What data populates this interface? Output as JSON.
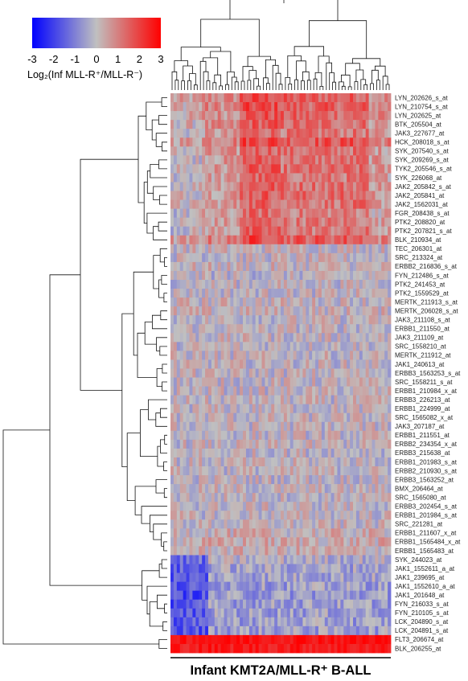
{
  "chart_data": {
    "type": "heatmap",
    "title": "Infant KMT2A/MLL-R⁺ B-ALL",
    "colorbar": {
      "label": "Log₂(Inf MLL-R⁺/MLL-R⁻)",
      "ticks": [
        "-3",
        "-2",
        "-1",
        "0",
        "1",
        "2",
        "3"
      ],
      "range": [
        -3,
        3
      ],
      "colors": {
        "low": "#0000ff",
        "mid": "#c0c0c0",
        "high": "#ff0000"
      }
    },
    "n_samples": 70,
    "rows": [
      {
        "label": "LYN_202626_s_at",
        "mean": 0.9
      },
      {
        "label": "LYN_210754_s_at",
        "mean": 0.9
      },
      {
        "label": "LYN_202625_at",
        "mean": 0.8
      },
      {
        "label": "BTK_205504_at",
        "mean": 0.7
      },
      {
        "label": "JAK3_227677_at",
        "mean": 0.5
      },
      {
        "label": "HCK_208018_s_at",
        "mean": 1.1
      },
      {
        "label": "SYK_207540_s_at",
        "mean": 0.6
      },
      {
        "label": "SYK_209269_s_at",
        "mean": 0.6
      },
      {
        "label": "TYK2_205546_s_at",
        "mean": 0.6
      },
      {
        "label": "SYK_226068_at",
        "mean": 0.5
      },
      {
        "label": "JAK2_205842_s_at",
        "mean": 0.7
      },
      {
        "label": "JAK2_205841_at",
        "mean": 0.7
      },
      {
        "label": "JAK2_1562031_at",
        "mean": 0.6
      },
      {
        "label": "FGR_208438_s_at",
        "mean": 0.4
      },
      {
        "label": "PTK2_208820_at",
        "mean": 0.5
      },
      {
        "label": "PTK2_207821_s_at",
        "mean": 0.5
      },
      {
        "label": "BLK_210934_at",
        "mean": 1.0
      },
      {
        "label": "TEC_206301_at",
        "mean": 0.1
      },
      {
        "label": "SRC_213324_at",
        "mean": 0.0
      },
      {
        "label": "ERBB2_216836_s_at",
        "mean": 0.1
      },
      {
        "label": "FYN_212486_s_at",
        "mean": -0.1
      },
      {
        "label": "PTK2_241453_at",
        "mean": 0.0
      },
      {
        "label": "PTK2_1559529_at",
        "mean": 0.0
      },
      {
        "label": "MERTK_211913_s_at",
        "mean": 0.1
      },
      {
        "label": "MERTK_206028_s_at",
        "mean": 0.1
      },
      {
        "label": "JAK3_211108_s_at",
        "mean": 0.0
      },
      {
        "label": "ERBB1_211550_at",
        "mean": 0.0
      },
      {
        "label": "JAK3_211109_at",
        "mean": 0.0
      },
      {
        "label": "SRC_1558210_at",
        "mean": 0.0
      },
      {
        "label": "MERTK_211912_at",
        "mean": 0.0
      },
      {
        "label": "JAK1_240613_at",
        "mean": 0.0
      },
      {
        "label": "ERBB3_1563253_s_at",
        "mean": 0.0
      },
      {
        "label": "SRC_1558211_s_at",
        "mean": 0.0
      },
      {
        "label": "ERBB1_210984_x_at",
        "mean": 0.0
      },
      {
        "label": "ERBB3_226213_at",
        "mean": 0.0
      },
      {
        "label": "ERBB1_224999_at",
        "mean": 0.0
      },
      {
        "label": "SRC_1565082_x_at",
        "mean": 0.0
      },
      {
        "label": "JAK3_207187_at",
        "mean": 0.0
      },
      {
        "label": "ERBB1_211551_at",
        "mean": 0.0
      },
      {
        "label": "ERBB2_234354_x_at",
        "mean": 0.0
      },
      {
        "label": "ERBB3_215638_at",
        "mean": 0.0
      },
      {
        "label": "ERBB1_201983_s_at",
        "mean": 0.0
      },
      {
        "label": "ERBB2_210930_s_at",
        "mean": 0.0
      },
      {
        "label": "ERBB3_1563252_at",
        "mean": 0.0
      },
      {
        "label": "BMX_206464_at",
        "mean": 0.0
      },
      {
        "label": "SRC_1565080_at",
        "mean": 0.0
      },
      {
        "label": "ERBB3_202454_s_at",
        "mean": 0.0
      },
      {
        "label": "ERBB1_201984_s_at",
        "mean": 0.0
      },
      {
        "label": "SRC_221281_at",
        "mean": 0.0
      },
      {
        "label": "ERBB1_211607_x_at",
        "mean": 0.2
      },
      {
        "label": "ERBB1_1565484_x_at",
        "mean": 0.3
      },
      {
        "label": "ERBB1_1565483_at",
        "mean": 0.2
      },
      {
        "label": "SYK_244023_at",
        "mean": -0.2
      },
      {
        "label": "JAK1_1552611_a_at",
        "mean": -0.4
      },
      {
        "label": "JAK1_239695_at",
        "mean": -0.4
      },
      {
        "label": "JAK1_1552610_a_at",
        "mean": -0.5
      },
      {
        "label": "JAK1_201648_at",
        "mean": -0.6
      },
      {
        "label": "FYN_216033_s_at",
        "mean": -0.5
      },
      {
        "label": "FYN_210105_s_at",
        "mean": -0.5
      },
      {
        "label": "LCK_204890_s_at",
        "mean": -0.5
      },
      {
        "label": "LCK_204891_s_at",
        "mean": -0.5
      },
      {
        "label": "FLT3_206674_at",
        "mean": 2.8
      },
      {
        "label": "BLK_206255_at",
        "mean": 2.6
      }
    ]
  }
}
